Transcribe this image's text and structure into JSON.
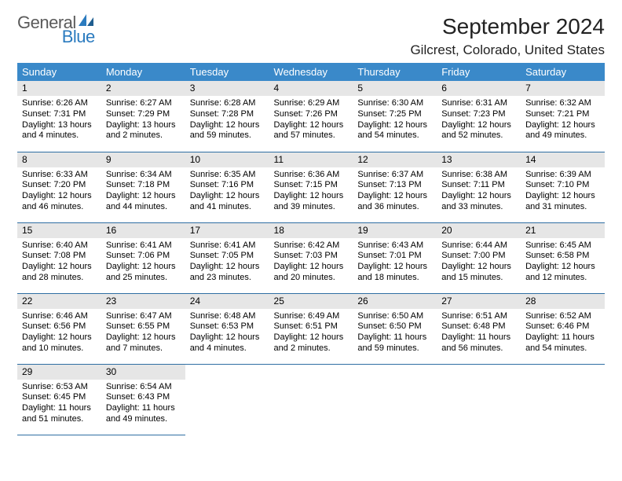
{
  "logo": {
    "word1": "General",
    "word2": "Blue",
    "icon_color": "#2b7bbf",
    "text1_color": "#5a5a5a",
    "text2_color": "#2b7bbf"
  },
  "header": {
    "title": "September 2024",
    "location": "Gilcrest, Colorado, United States"
  },
  "colors": {
    "header_bg": "#3a89c9",
    "header_fg": "#ffffff",
    "daynum_bg": "#e6e6e6",
    "rule": "#2f6fa3"
  },
  "columns": [
    "Sunday",
    "Monday",
    "Tuesday",
    "Wednesday",
    "Thursday",
    "Friday",
    "Saturday"
  ],
  "weeks": [
    [
      {
        "n": "1",
        "sr": "Sunrise: 6:26 AM",
        "ss": "Sunset: 7:31 PM",
        "d1": "Daylight: 13 hours",
        "d2": "and 4 minutes."
      },
      {
        "n": "2",
        "sr": "Sunrise: 6:27 AM",
        "ss": "Sunset: 7:29 PM",
        "d1": "Daylight: 13 hours",
        "d2": "and 2 minutes."
      },
      {
        "n": "3",
        "sr": "Sunrise: 6:28 AM",
        "ss": "Sunset: 7:28 PM",
        "d1": "Daylight: 12 hours",
        "d2": "and 59 minutes."
      },
      {
        "n": "4",
        "sr": "Sunrise: 6:29 AM",
        "ss": "Sunset: 7:26 PM",
        "d1": "Daylight: 12 hours",
        "d2": "and 57 minutes."
      },
      {
        "n": "5",
        "sr": "Sunrise: 6:30 AM",
        "ss": "Sunset: 7:25 PM",
        "d1": "Daylight: 12 hours",
        "d2": "and 54 minutes."
      },
      {
        "n": "6",
        "sr": "Sunrise: 6:31 AM",
        "ss": "Sunset: 7:23 PM",
        "d1": "Daylight: 12 hours",
        "d2": "and 52 minutes."
      },
      {
        "n": "7",
        "sr": "Sunrise: 6:32 AM",
        "ss": "Sunset: 7:21 PM",
        "d1": "Daylight: 12 hours",
        "d2": "and 49 minutes."
      }
    ],
    [
      {
        "n": "8",
        "sr": "Sunrise: 6:33 AM",
        "ss": "Sunset: 7:20 PM",
        "d1": "Daylight: 12 hours",
        "d2": "and 46 minutes."
      },
      {
        "n": "9",
        "sr": "Sunrise: 6:34 AM",
        "ss": "Sunset: 7:18 PM",
        "d1": "Daylight: 12 hours",
        "d2": "and 44 minutes."
      },
      {
        "n": "10",
        "sr": "Sunrise: 6:35 AM",
        "ss": "Sunset: 7:16 PM",
        "d1": "Daylight: 12 hours",
        "d2": "and 41 minutes."
      },
      {
        "n": "11",
        "sr": "Sunrise: 6:36 AM",
        "ss": "Sunset: 7:15 PM",
        "d1": "Daylight: 12 hours",
        "d2": "and 39 minutes."
      },
      {
        "n": "12",
        "sr": "Sunrise: 6:37 AM",
        "ss": "Sunset: 7:13 PM",
        "d1": "Daylight: 12 hours",
        "d2": "and 36 minutes."
      },
      {
        "n": "13",
        "sr": "Sunrise: 6:38 AM",
        "ss": "Sunset: 7:11 PM",
        "d1": "Daylight: 12 hours",
        "d2": "and 33 minutes."
      },
      {
        "n": "14",
        "sr": "Sunrise: 6:39 AM",
        "ss": "Sunset: 7:10 PM",
        "d1": "Daylight: 12 hours",
        "d2": "and 31 minutes."
      }
    ],
    [
      {
        "n": "15",
        "sr": "Sunrise: 6:40 AM",
        "ss": "Sunset: 7:08 PM",
        "d1": "Daylight: 12 hours",
        "d2": "and 28 minutes."
      },
      {
        "n": "16",
        "sr": "Sunrise: 6:41 AM",
        "ss": "Sunset: 7:06 PM",
        "d1": "Daylight: 12 hours",
        "d2": "and 25 minutes."
      },
      {
        "n": "17",
        "sr": "Sunrise: 6:41 AM",
        "ss": "Sunset: 7:05 PM",
        "d1": "Daylight: 12 hours",
        "d2": "and 23 minutes."
      },
      {
        "n": "18",
        "sr": "Sunrise: 6:42 AM",
        "ss": "Sunset: 7:03 PM",
        "d1": "Daylight: 12 hours",
        "d2": "and 20 minutes."
      },
      {
        "n": "19",
        "sr": "Sunrise: 6:43 AM",
        "ss": "Sunset: 7:01 PM",
        "d1": "Daylight: 12 hours",
        "d2": "and 18 minutes."
      },
      {
        "n": "20",
        "sr": "Sunrise: 6:44 AM",
        "ss": "Sunset: 7:00 PM",
        "d1": "Daylight: 12 hours",
        "d2": "and 15 minutes."
      },
      {
        "n": "21",
        "sr": "Sunrise: 6:45 AM",
        "ss": "Sunset: 6:58 PM",
        "d1": "Daylight: 12 hours",
        "d2": "and 12 minutes."
      }
    ],
    [
      {
        "n": "22",
        "sr": "Sunrise: 6:46 AM",
        "ss": "Sunset: 6:56 PM",
        "d1": "Daylight: 12 hours",
        "d2": "and 10 minutes."
      },
      {
        "n": "23",
        "sr": "Sunrise: 6:47 AM",
        "ss": "Sunset: 6:55 PM",
        "d1": "Daylight: 12 hours",
        "d2": "and 7 minutes."
      },
      {
        "n": "24",
        "sr": "Sunrise: 6:48 AM",
        "ss": "Sunset: 6:53 PM",
        "d1": "Daylight: 12 hours",
        "d2": "and 4 minutes."
      },
      {
        "n": "25",
        "sr": "Sunrise: 6:49 AM",
        "ss": "Sunset: 6:51 PM",
        "d1": "Daylight: 12 hours",
        "d2": "and 2 minutes."
      },
      {
        "n": "26",
        "sr": "Sunrise: 6:50 AM",
        "ss": "Sunset: 6:50 PM",
        "d1": "Daylight: 11 hours",
        "d2": "and 59 minutes."
      },
      {
        "n": "27",
        "sr": "Sunrise: 6:51 AM",
        "ss": "Sunset: 6:48 PM",
        "d1": "Daylight: 11 hours",
        "d2": "and 56 minutes."
      },
      {
        "n": "28",
        "sr": "Sunrise: 6:52 AM",
        "ss": "Sunset: 6:46 PM",
        "d1": "Daylight: 11 hours",
        "d2": "and 54 minutes."
      }
    ],
    [
      {
        "n": "29",
        "sr": "Sunrise: 6:53 AM",
        "ss": "Sunset: 6:45 PM",
        "d1": "Daylight: 11 hours",
        "d2": "and 51 minutes."
      },
      {
        "n": "30",
        "sr": "Sunrise: 6:54 AM",
        "ss": "Sunset: 6:43 PM",
        "d1": "Daylight: 11 hours",
        "d2": "and 49 minutes."
      },
      null,
      null,
      null,
      null,
      null
    ]
  ]
}
